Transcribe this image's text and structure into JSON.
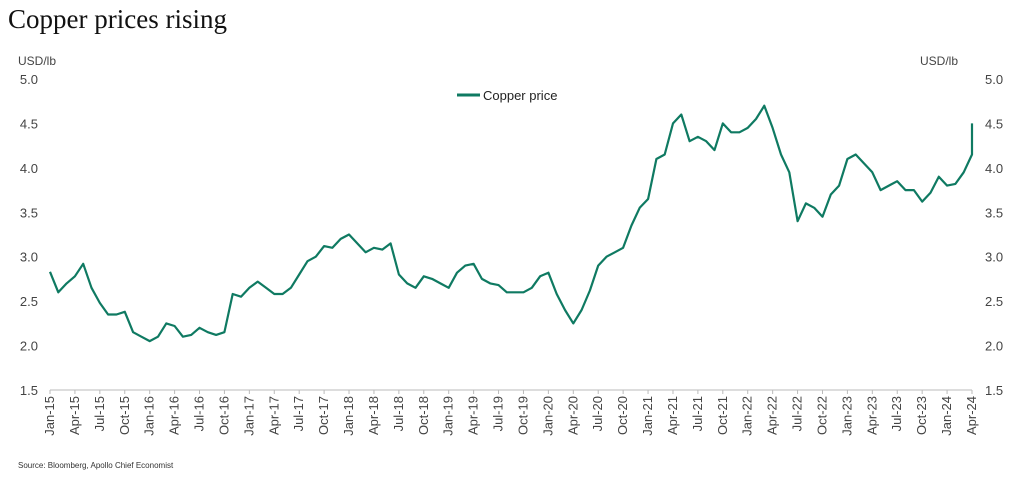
{
  "title": "Copper prices rising",
  "source": "Source: Bloomberg, Apollo Chief Economist",
  "colors": {
    "series": "#0f7a62",
    "axis": "#bbbbbb",
    "text": "#444444"
  },
  "chart_data": {
    "type": "line",
    "y_unit_left": "USD/lb",
    "y_unit_right": "USD/lb",
    "ylim": [
      1.5,
      5.0
    ],
    "y_ticks": [
      "1.5",
      "2.0",
      "2.5",
      "3.0",
      "3.5",
      "4.0",
      "4.5",
      "5.0"
    ],
    "grid": false,
    "legend_position": "top-center",
    "x_tick_labels": [
      "Jan-15",
      "Apr-15",
      "Jul-15",
      "Oct-15",
      "Jan-16",
      "Apr-16",
      "Jul-16",
      "Oct-16",
      "Jan-17",
      "Apr-17",
      "Jul-17",
      "Oct-17",
      "Jan-18",
      "Apr-18",
      "Jul-18",
      "Oct-18",
      "Jan-19",
      "Apr-19",
      "Jul-19",
      "Oct-19",
      "Jan-20",
      "Apr-20",
      "Jul-20",
      "Oct-20",
      "Jan-21",
      "Apr-21",
      "Jul-21",
      "Oct-21",
      "Jan-22",
      "Apr-22",
      "Jul-22",
      "Oct-22",
      "Jan-23",
      "Apr-23",
      "Jul-23",
      "Oct-23",
      "Jan-24",
      "Apr-24"
    ],
    "series": [
      {
        "name": "Copper price",
        "x": [
          "2015-01",
          "2015-02",
          "2015-03",
          "2015-04",
          "2015-05",
          "2015-06",
          "2015-07",
          "2015-08",
          "2015-09",
          "2015-10",
          "2015-11",
          "2015-12",
          "2016-01",
          "2016-02",
          "2016-03",
          "2016-04",
          "2016-05",
          "2016-06",
          "2016-07",
          "2016-08",
          "2016-09",
          "2016-10",
          "2016-11",
          "2016-12",
          "2017-01",
          "2017-02",
          "2017-03",
          "2017-04",
          "2017-05",
          "2017-06",
          "2017-07",
          "2017-08",
          "2017-09",
          "2017-10",
          "2017-11",
          "2017-12",
          "2018-01",
          "2018-02",
          "2018-03",
          "2018-04",
          "2018-05",
          "2018-06",
          "2018-07",
          "2018-08",
          "2018-09",
          "2018-10",
          "2018-11",
          "2018-12",
          "2019-01",
          "2019-02",
          "2019-03",
          "2019-04",
          "2019-05",
          "2019-06",
          "2019-07",
          "2019-08",
          "2019-09",
          "2019-10",
          "2019-11",
          "2019-12",
          "2020-01",
          "2020-02",
          "2020-03",
          "2020-04",
          "2020-05",
          "2020-06",
          "2020-07",
          "2020-08",
          "2020-09",
          "2020-10",
          "2020-11",
          "2020-12",
          "2021-01",
          "2021-02",
          "2021-03",
          "2021-04",
          "2021-05",
          "2021-06",
          "2021-07",
          "2021-08",
          "2021-09",
          "2021-10",
          "2021-11",
          "2021-12",
          "2022-01",
          "2022-02",
          "2022-03",
          "2022-04",
          "2022-05",
          "2022-06",
          "2022-07",
          "2022-08",
          "2022-09",
          "2022-10",
          "2022-11",
          "2022-12",
          "2023-01",
          "2023-02",
          "2023-03",
          "2023-04",
          "2023-05",
          "2023-06",
          "2023-07",
          "2023-08",
          "2023-09",
          "2023-10",
          "2023-11",
          "2023-12",
          "2024-01",
          "2024-02",
          "2024-03",
          "2024-04",
          "2024-05"
        ],
        "values": [
          2.83,
          2.6,
          2.7,
          2.78,
          2.92,
          2.65,
          2.48,
          2.35,
          2.35,
          2.38,
          2.15,
          2.1,
          2.05,
          2.1,
          2.25,
          2.22,
          2.1,
          2.12,
          2.2,
          2.15,
          2.12,
          2.15,
          2.58,
          2.55,
          2.65,
          2.72,
          2.65,
          2.58,
          2.58,
          2.65,
          2.8,
          2.95,
          3.0,
          3.12,
          3.1,
          3.2,
          3.25,
          3.15,
          3.05,
          3.1,
          3.08,
          3.15,
          2.8,
          2.7,
          2.65,
          2.78,
          2.75,
          2.7,
          2.65,
          2.82,
          2.9,
          2.92,
          2.75,
          2.7,
          2.68,
          2.6,
          2.6,
          2.6,
          2.65,
          2.78,
          2.82,
          2.58,
          2.4,
          2.25,
          2.4,
          2.62,
          2.9,
          3.0,
          3.05,
          3.1,
          3.35,
          3.55,
          3.65,
          4.1,
          4.15,
          4.5,
          4.6,
          4.3,
          4.35,
          4.3,
          4.2,
          4.5,
          4.4,
          4.4,
          4.45,
          4.55,
          4.7,
          4.45,
          4.15,
          3.95,
          3.4,
          3.6,
          3.55,
          3.45,
          3.7,
          3.8,
          4.1,
          4.15,
          4.05,
          3.95,
          3.75,
          3.8,
          3.85,
          3.75,
          3.75,
          3.62,
          3.72,
          3.9,
          3.8,
          3.82,
          3.95,
          4.15,
          4.5
        ]
      }
    ]
  }
}
